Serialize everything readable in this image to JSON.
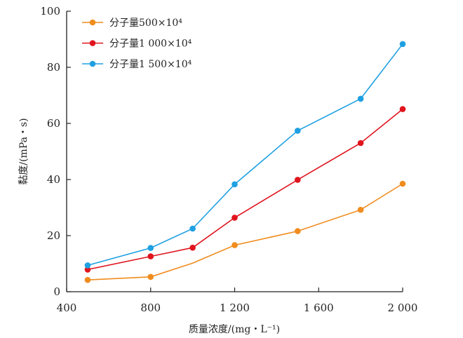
{
  "chart_data": {
    "type": "line",
    "title": "",
    "xlabel": "质量浓度/(mg・L⁻¹)",
    "ylabel": "黏度/(mPa・s)",
    "xlim": [
      400,
      2000
    ],
    "ylim": [
      0,
      100
    ],
    "xticks": [
      400,
      800,
      1200,
      1600,
      2000
    ],
    "xtick_labels": [
      "400",
      "800",
      "1 200",
      "1 600",
      "2 000"
    ],
    "yticks": [
      0,
      20,
      40,
      60,
      80,
      100
    ],
    "ytick_labels": [
      "0",
      "20",
      "40",
      "60",
      "80",
      "100"
    ],
    "grid": false,
    "legend_position": "top-left",
    "series": [
      {
        "name": "分子量500×10⁴",
        "color": "#F08C1E",
        "x": [
          500,
          800,
          1000,
          1200,
          1500,
          1800,
          2000
        ],
        "y": [
          4.2,
          5.3,
          10.2,
          16.6,
          21.6,
          29.2,
          38.5
        ],
        "markers": [
          true,
          true,
          false,
          true,
          true,
          true,
          true
        ]
      },
      {
        "name": "分子量1 000×10⁴",
        "color": "#E0141E",
        "x": [
          500,
          800,
          1000,
          1200,
          1500,
          1800,
          2000
        ],
        "y": [
          7.9,
          12.6,
          15.7,
          26.4,
          39.9,
          53.0,
          65.1
        ],
        "markers": [
          true,
          true,
          true,
          true,
          true,
          true,
          true
        ]
      },
      {
        "name": "分子量1 500×10⁴",
        "color": "#1EA0E1",
        "x": [
          500,
          800,
          1000,
          1200,
          1500,
          1800,
          2000
        ],
        "y": [
          9.4,
          15.6,
          22.5,
          38.3,
          57.4,
          68.8,
          88.3
        ],
        "markers": [
          true,
          true,
          true,
          true,
          true,
          true,
          true
        ]
      }
    ]
  }
}
